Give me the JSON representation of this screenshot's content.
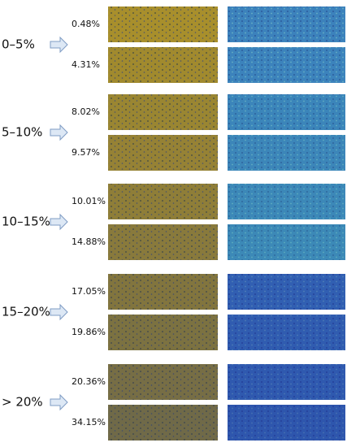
{
  "groups": [
    {
      "label": "0–5%",
      "samples": [
        "0.48%",
        "4.31%"
      ]
    },
    {
      "label": "5–10%",
      "samples": [
        "8.02%",
        "9.57%"
      ]
    },
    {
      "label": "10–15%",
      "samples": [
        "10.01%",
        "14.88%"
      ]
    },
    {
      "label": "15–20%",
      "samples": [
        "17.05%",
        "19.86%"
      ]
    },
    {
      "label": "> 20%",
      "samples": [
        "20.36%",
        "34.15%"
      ]
    }
  ]
}
